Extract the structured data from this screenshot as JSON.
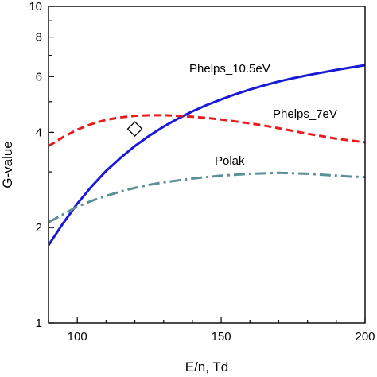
{
  "chart_data": {
    "type": "line",
    "xlabel": "E/n, Td",
    "ylabel": "G-value",
    "xlim": [
      90,
      200
    ],
    "ylim": [
      1,
      10
    ],
    "yscale": "log",
    "grid": false,
    "x_ticks": [
      {
        "value": 100,
        "label": "100"
      },
      {
        "value": 150,
        "label": "150"
      },
      {
        "value": 200,
        "label": "200"
      }
    ],
    "y_ticks": [
      {
        "value": 1,
        "label": "1"
      },
      {
        "value": 2,
        "label": "2"
      },
      {
        "value": 4,
        "label": "4"
      },
      {
        "value": 6,
        "label": "6"
      },
      {
        "value": 8,
        "label": "8"
      },
      {
        "value": 10,
        "label": "10"
      }
    ],
    "series": [
      {
        "name": "Phelps_10.5eV",
        "color": "#1a1ad6",
        "style": "solid",
        "x": [
          90,
          95,
          100,
          105,
          110,
          115,
          120,
          125,
          130,
          135,
          140,
          145,
          150,
          155,
          160,
          165,
          170,
          175,
          180,
          185,
          190,
          195,
          200
        ],
        "y": [
          1.76,
          2.06,
          2.38,
          2.7,
          3.02,
          3.32,
          3.62,
          3.9,
          4.17,
          4.42,
          4.66,
          4.88,
          5.08,
          5.28,
          5.46,
          5.63,
          5.79,
          5.93,
          6.06,
          6.18,
          6.3,
          6.41,
          6.52
        ]
      },
      {
        "name": "Phelps_7eV",
        "color": "#e81c1c",
        "style": "dashed",
        "x": [
          90,
          95,
          100,
          105,
          110,
          115,
          120,
          125,
          130,
          135,
          140,
          145,
          150,
          155,
          160,
          165,
          170,
          175,
          180,
          185,
          190,
          195,
          200
        ],
        "y": [
          3.62,
          3.86,
          4.08,
          4.25,
          4.38,
          4.46,
          4.51,
          4.53,
          4.53,
          4.51,
          4.48,
          4.44,
          4.39,
          4.33,
          4.27,
          4.2,
          4.12,
          4.04,
          3.96,
          3.89,
          3.82,
          3.77,
          3.72
        ]
      },
      {
        "name": "Polak",
        "color": "#5b9196",
        "style": "dashdot",
        "x": [
          90,
          95,
          100,
          105,
          110,
          115,
          120,
          125,
          130,
          135,
          140,
          145,
          150,
          155,
          160,
          165,
          170,
          175,
          180,
          185,
          190,
          195,
          200
        ],
        "y": [
          2.08,
          2.2,
          2.33,
          2.43,
          2.52,
          2.6,
          2.67,
          2.73,
          2.78,
          2.82,
          2.86,
          2.89,
          2.92,
          2.94,
          2.96,
          2.97,
          2.98,
          2.97,
          2.96,
          2.94,
          2.92,
          2.9,
          2.89
        ]
      }
    ],
    "markers": [
      {
        "shape": "diamond",
        "x": 120,
        "y": 4.1
      }
    ],
    "annotations": [
      {
        "text": "Phelps_10.5eV",
        "series": "Phelps_10.5eV"
      },
      {
        "text": "Phelps_7eV",
        "series": "Phelps_7eV"
      },
      {
        "text": "Polak",
        "series": "Polak"
      }
    ]
  }
}
